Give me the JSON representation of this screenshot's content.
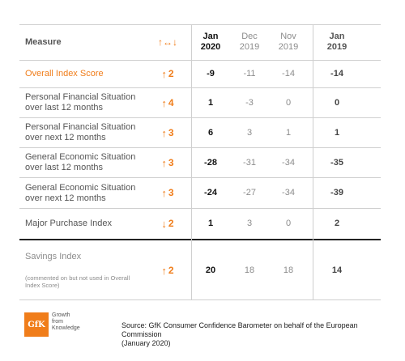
{
  "header": {
    "measure_label": "Measure",
    "trend_arrows": "↑↔↓",
    "col1": {
      "month": "Jan",
      "year": "2020"
    },
    "col2": {
      "month": "Dec",
      "year": "2019"
    },
    "col3": {
      "month": "Nov",
      "year": "2019"
    },
    "col4": {
      "month": "Jan",
      "year": "2019"
    }
  },
  "rows": [
    {
      "label_line1": "Overall Index Score",
      "label_line2": "",
      "trend_arrow": "↑",
      "trend_value": "2",
      "jan2020": "-9",
      "dec2019": "-11",
      "nov2019": "-14",
      "jan2019": "-14"
    },
    {
      "label_line1": "Personal Financial Situation",
      "label_line2": "over last 12 months",
      "trend_arrow": "↑",
      "trend_value": "4",
      "jan2020": "1",
      "dec2019": "-3",
      "nov2019": "0",
      "jan2019": "0"
    },
    {
      "label_line1": "Personal Financial Situation",
      "label_line2": "over next 12 months",
      "trend_arrow": "↑",
      "trend_value": "3",
      "jan2020": "6",
      "dec2019": "3",
      "nov2019": "1",
      "jan2019": "1"
    },
    {
      "label_line1": "General Economic Situation",
      "label_line2": "over last 12 months",
      "trend_arrow": "↑",
      "trend_value": "3",
      "jan2020": "-28",
      "dec2019": "-31",
      "nov2019": "-34",
      "jan2019": "-35"
    },
    {
      "label_line1": "General Economic Situation",
      "label_line2": "over next 12 months",
      "trend_arrow": "↑",
      "trend_value": "3",
      "jan2020": "-24",
      "dec2019": "-27",
      "nov2019": "-34",
      "jan2019": "-39"
    },
    {
      "label_line1": "Major Purchase Index",
      "label_line2": "",
      "trend_arrow": "↓",
      "trend_value": "2",
      "jan2020": "1",
      "dec2019": "3",
      "nov2019": "0",
      "jan2019": "2"
    }
  ],
  "savings": {
    "label": "Savings Index",
    "note": "(commented on but not used in Overall Index Score)",
    "trend_arrow": "↑",
    "trend_value": "2",
    "jan2020": "20",
    "dec2019": "18",
    "nov2019": "18",
    "jan2019": "14"
  },
  "footer": {
    "logo_text": "GfK",
    "tagline_1": "Growth",
    "tagline_2": "from",
    "tagline_3": "Knowledge",
    "source_line1": "Source: GfK Consumer Confidence Barometer on behalf of the European Commission",
    "source_line2": "(January 2020)"
  },
  "colors": {
    "accent": "#f07d1a",
    "text_dark": "#111111",
    "text_grey": "#8c8c8c",
    "rule_heavy": "#222222",
    "rule_light": "#cfcfcf"
  },
  "icons": {
    "up": "arrow-up-icon",
    "down": "arrow-down-icon",
    "trend_legend": "up-right-down-arrows-icon"
  }
}
